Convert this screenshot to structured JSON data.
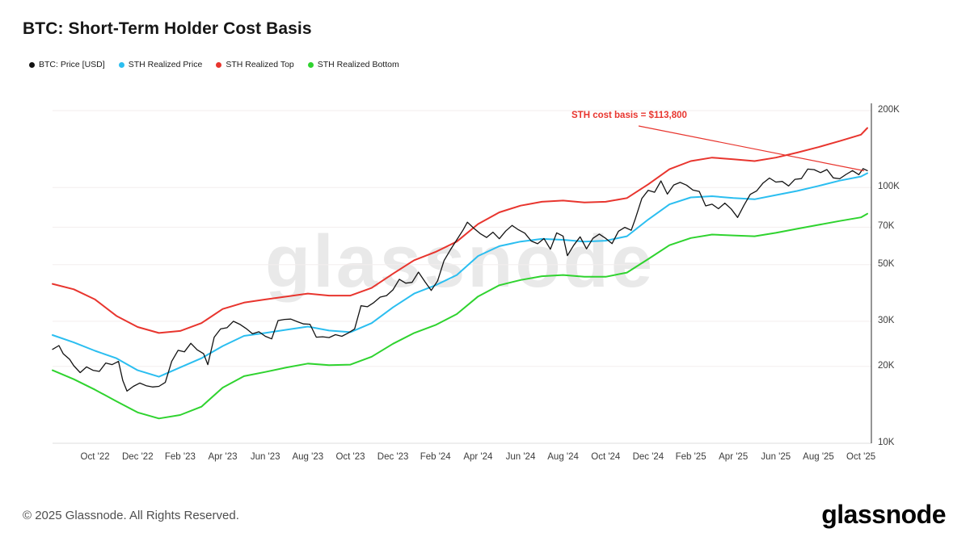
{
  "header": {
    "title": "BTC: Short-Term Holder Cost Basis"
  },
  "watermark": {
    "text": "glassnode"
  },
  "footer": {
    "copyright": "© 2025 Glassnode. All Rights Reserved.",
    "logo_text": "glassnode"
  },
  "colors": {
    "grid": "#f3eeee",
    "bottom_spine": "#dcdcdc",
    "right_spine": "#2b2b2b",
    "axis_text": "#3c3c3c",
    "watermark": "#e9e9e9"
  },
  "chart_data": {
    "type": "line",
    "title": "BTC: Short-Term Holder Cost Basis",
    "y_scale": "log",
    "y_unit": "USD (thousands)",
    "x_unit": "months since Aug 2022",
    "x_range": [
      0,
      38.3
    ],
    "y_range_k": [
      10,
      200
    ],
    "grid": "horizontal",
    "legend_position": "top-left",
    "x_ticks": [
      {
        "t": 2,
        "label": "Oct '22"
      },
      {
        "t": 4,
        "label": "Dec '22"
      },
      {
        "t": 6,
        "label": "Feb '23"
      },
      {
        "t": 8,
        "label": "Apr '23"
      },
      {
        "t": 10,
        "label": "Jun '23"
      },
      {
        "t": 12,
        "label": "Aug '23"
      },
      {
        "t": 14,
        "label": "Oct '23"
      },
      {
        "t": 16,
        "label": "Dec '23"
      },
      {
        "t": 18,
        "label": "Feb '24"
      },
      {
        "t": 20,
        "label": "Apr '24"
      },
      {
        "t": 22,
        "label": "Jun '24"
      },
      {
        "t": 24,
        "label": "Aug '24"
      },
      {
        "t": 26,
        "label": "Oct '24"
      },
      {
        "t": 28,
        "label": "Dec '24"
      },
      {
        "t": 30,
        "label": "Feb '25"
      },
      {
        "t": 32,
        "label": "Apr '25"
      },
      {
        "t": 34,
        "label": "Jun '25"
      },
      {
        "t": 36,
        "label": "Aug '25"
      },
      {
        "t": 38,
        "label": "Oct '25"
      }
    ],
    "y_ticks": [
      {
        "v": 200,
        "label": "200K"
      },
      {
        "v": 100,
        "label": "100K"
      },
      {
        "v": 70,
        "label": "70K"
      },
      {
        "v": 50,
        "label": "50K"
      },
      {
        "v": 30,
        "label": "30K"
      },
      {
        "v": 20,
        "label": "20K"
      },
      {
        "v": 10,
        "label": "10K"
      }
    ],
    "band_t": [
      0,
      1,
      2,
      3,
      4,
      5,
      6,
      7,
      8,
      9,
      10,
      11,
      12,
      13,
      14,
      15,
      16,
      17,
      18,
      19,
      20,
      21,
      22,
      23,
      24,
      25,
      26,
      27,
      28,
      29,
      30,
      31,
      32,
      33,
      34,
      35,
      36,
      37,
      38,
      38.3
    ],
    "series": [
      {
        "name": "BTC: Price [USD]",
        "color": "#131313",
        "width": 1.3,
        "points": [
          [
            0,
            23.3
          ],
          [
            0.3,
            24.1
          ],
          [
            0.5,
            22.4
          ],
          [
            0.8,
            21.3
          ],
          [
            1,
            20.1
          ],
          [
            1.3,
            18.9
          ],
          [
            1.6,
            19.9
          ],
          [
            1.9,
            19.3
          ],
          [
            2.2,
            19.1
          ],
          [
            2.5,
            20.6
          ],
          [
            2.8,
            20.3
          ],
          [
            3.1,
            20.9
          ],
          [
            3.3,
            17.6
          ],
          [
            3.5,
            16.0
          ],
          [
            3.8,
            16.7
          ],
          [
            4.1,
            17.2
          ],
          [
            4.4,
            16.8
          ],
          [
            4.7,
            16.6
          ],
          [
            5,
            16.7
          ],
          [
            5.3,
            17.3
          ],
          [
            5.6,
            20.9
          ],
          [
            5.9,
            23.1
          ],
          [
            6.2,
            22.8
          ],
          [
            6.5,
            24.6
          ],
          [
            6.8,
            23.2
          ],
          [
            7.1,
            22.4
          ],
          [
            7.3,
            20.3
          ],
          [
            7.6,
            26.0
          ],
          [
            7.9,
            28.0
          ],
          [
            8.2,
            28.3
          ],
          [
            8.5,
            30.0
          ],
          [
            8.8,
            29.2
          ],
          [
            9.1,
            28.1
          ],
          [
            9.4,
            26.8
          ],
          [
            9.7,
            27.3
          ],
          [
            10,
            26.2
          ],
          [
            10.3,
            25.6
          ],
          [
            10.6,
            30.2
          ],
          [
            10.9,
            30.5
          ],
          [
            11.2,
            30.6
          ],
          [
            11.5,
            29.9
          ],
          [
            11.8,
            29.3
          ],
          [
            12.1,
            29.2
          ],
          [
            12.4,
            26.0
          ],
          [
            12.7,
            26.1
          ],
          [
            13,
            25.9
          ],
          [
            13.3,
            26.6
          ],
          [
            13.6,
            26.2
          ],
          [
            13.9,
            27.0
          ],
          [
            14.2,
            28.0
          ],
          [
            14.5,
            34.5
          ],
          [
            14.8,
            34.2
          ],
          [
            15.1,
            35.5
          ],
          [
            15.4,
            37.3
          ],
          [
            15.7,
            37.8
          ],
          [
            16,
            39.8
          ],
          [
            16.3,
            43.8
          ],
          [
            16.6,
            42.3
          ],
          [
            16.9,
            42.6
          ],
          [
            17.2,
            46.7
          ],
          [
            17.5,
            42.9
          ],
          [
            17.8,
            39.6
          ],
          [
            18.1,
            43.2
          ],
          [
            18.4,
            51.8
          ],
          [
            18.7,
            57.1
          ],
          [
            19,
            62.5
          ],
          [
            19.3,
            68.3
          ],
          [
            19.5,
            73.2
          ],
          [
            19.8,
            69.4
          ],
          [
            20.1,
            66.1
          ],
          [
            20.4,
            63.8
          ],
          [
            20.7,
            66.9
          ],
          [
            21,
            63.1
          ],
          [
            21.3,
            67.6
          ],
          [
            21.6,
            71.1
          ],
          [
            21.9,
            68.4
          ],
          [
            22.2,
            66.3
          ],
          [
            22.5,
            61.8
          ],
          [
            22.8,
            60.3
          ],
          [
            23.1,
            63.2
          ],
          [
            23.4,
            57.4
          ],
          [
            23.7,
            66.5
          ],
          [
            24,
            64.6
          ],
          [
            24.2,
            54.2
          ],
          [
            24.5,
            59.5
          ],
          [
            24.8,
            64.2
          ],
          [
            25.1,
            57.6
          ],
          [
            25.4,
            63.3
          ],
          [
            25.7,
            65.8
          ],
          [
            26,
            63.3
          ],
          [
            26.3,
            60.4
          ],
          [
            26.6,
            67.5
          ],
          [
            26.9,
            69.9
          ],
          [
            27.2,
            68.1
          ],
          [
            27.4,
            75.7
          ],
          [
            27.7,
            90.6
          ],
          [
            28,
            97.6
          ],
          [
            28.3,
            95.9
          ],
          [
            28.6,
            106.2
          ],
          [
            28.9,
            94.3
          ],
          [
            29.2,
            102.4
          ],
          [
            29.5,
            104.8
          ],
          [
            29.8,
            102.2
          ],
          [
            30.1,
            97.8
          ],
          [
            30.4,
            96.6
          ],
          [
            30.7,
            84.8
          ],
          [
            31,
            86.1
          ],
          [
            31.3,
            82.7
          ],
          [
            31.6,
            86.9
          ],
          [
            31.9,
            82.5
          ],
          [
            32.2,
            76.4
          ],
          [
            32.5,
            85.3
          ],
          [
            32.8,
            94.1
          ],
          [
            33.1,
            97.1
          ],
          [
            33.4,
            104.2
          ],
          [
            33.7,
            109.0
          ],
          [
            34,
            105.1
          ],
          [
            34.3,
            105.7
          ],
          [
            34.6,
            101.5
          ],
          [
            34.9,
            107.7
          ],
          [
            35.2,
            108.4
          ],
          [
            35.5,
            118.1
          ],
          [
            35.8,
            117.5
          ],
          [
            36.1,
            114.4
          ],
          [
            36.4,
            117.6
          ],
          [
            36.7,
            109.1
          ],
          [
            37,
            108.3
          ],
          [
            37.3,
            112.6
          ],
          [
            37.6,
            116.5
          ],
          [
            37.9,
            112.4
          ],
          [
            38.1,
            118.6
          ],
          [
            38.3,
            116.5
          ]
        ]
      },
      {
        "name": "STH Realized Price",
        "color": "#2bbef0",
        "width": 2,
        "v": [
          26.5,
          24.8,
          23.0,
          21.5,
          19.3,
          18.2,
          19.8,
          21.5,
          24.0,
          26.3,
          27.0,
          27.8,
          28.6,
          27.6,
          27.2,
          29.5,
          34.0,
          38.5,
          41.5,
          45.5,
          54.0,
          59.0,
          61.5,
          63.0,
          62.5,
          61.5,
          62.0,
          64.5,
          75.0,
          86.0,
          91.5,
          92.5,
          91.0,
          90.0,
          93.5,
          97.0,
          101.5,
          106.5,
          110.5,
          113.8
        ]
      },
      {
        "name": "STH Realized Top",
        "color": "#e8352e",
        "width": 2,
        "v": [
          42.0,
          40.0,
          36.5,
          31.5,
          28.5,
          27.0,
          27.5,
          29.5,
          33.5,
          35.5,
          36.5,
          37.5,
          38.5,
          37.8,
          37.8,
          40.5,
          46.0,
          52.0,
          56.0,
          61.5,
          72.0,
          80.0,
          85.0,
          88.0,
          89.0,
          87.5,
          88.0,
          91.0,
          103.0,
          118.0,
          127.0,
          131.0,
          129.0,
          127.0,
          131.0,
          137.0,
          144.0,
          152.0,
          161.0,
          171.0
        ]
      },
      {
        "name": "STH Realized Bottom",
        "color": "#2fd32f",
        "width": 2,
        "v": [
          19.3,
          17.8,
          16.2,
          14.6,
          13.2,
          12.5,
          12.9,
          13.9,
          16.5,
          18.3,
          19.0,
          19.8,
          20.5,
          20.2,
          20.3,
          21.8,
          24.5,
          27.0,
          29.0,
          32.0,
          37.5,
          41.5,
          43.5,
          45.0,
          45.5,
          44.8,
          44.8,
          46.5,
          52.5,
          59.5,
          63.5,
          65.5,
          65.0,
          64.5,
          66.5,
          69.0,
          71.5,
          74.0,
          76.5,
          79.0
        ]
      }
    ],
    "annotation": {
      "text": "STH cost basis = $113,800",
      "value_usd": 113800,
      "color": "#e8352e"
    }
  }
}
